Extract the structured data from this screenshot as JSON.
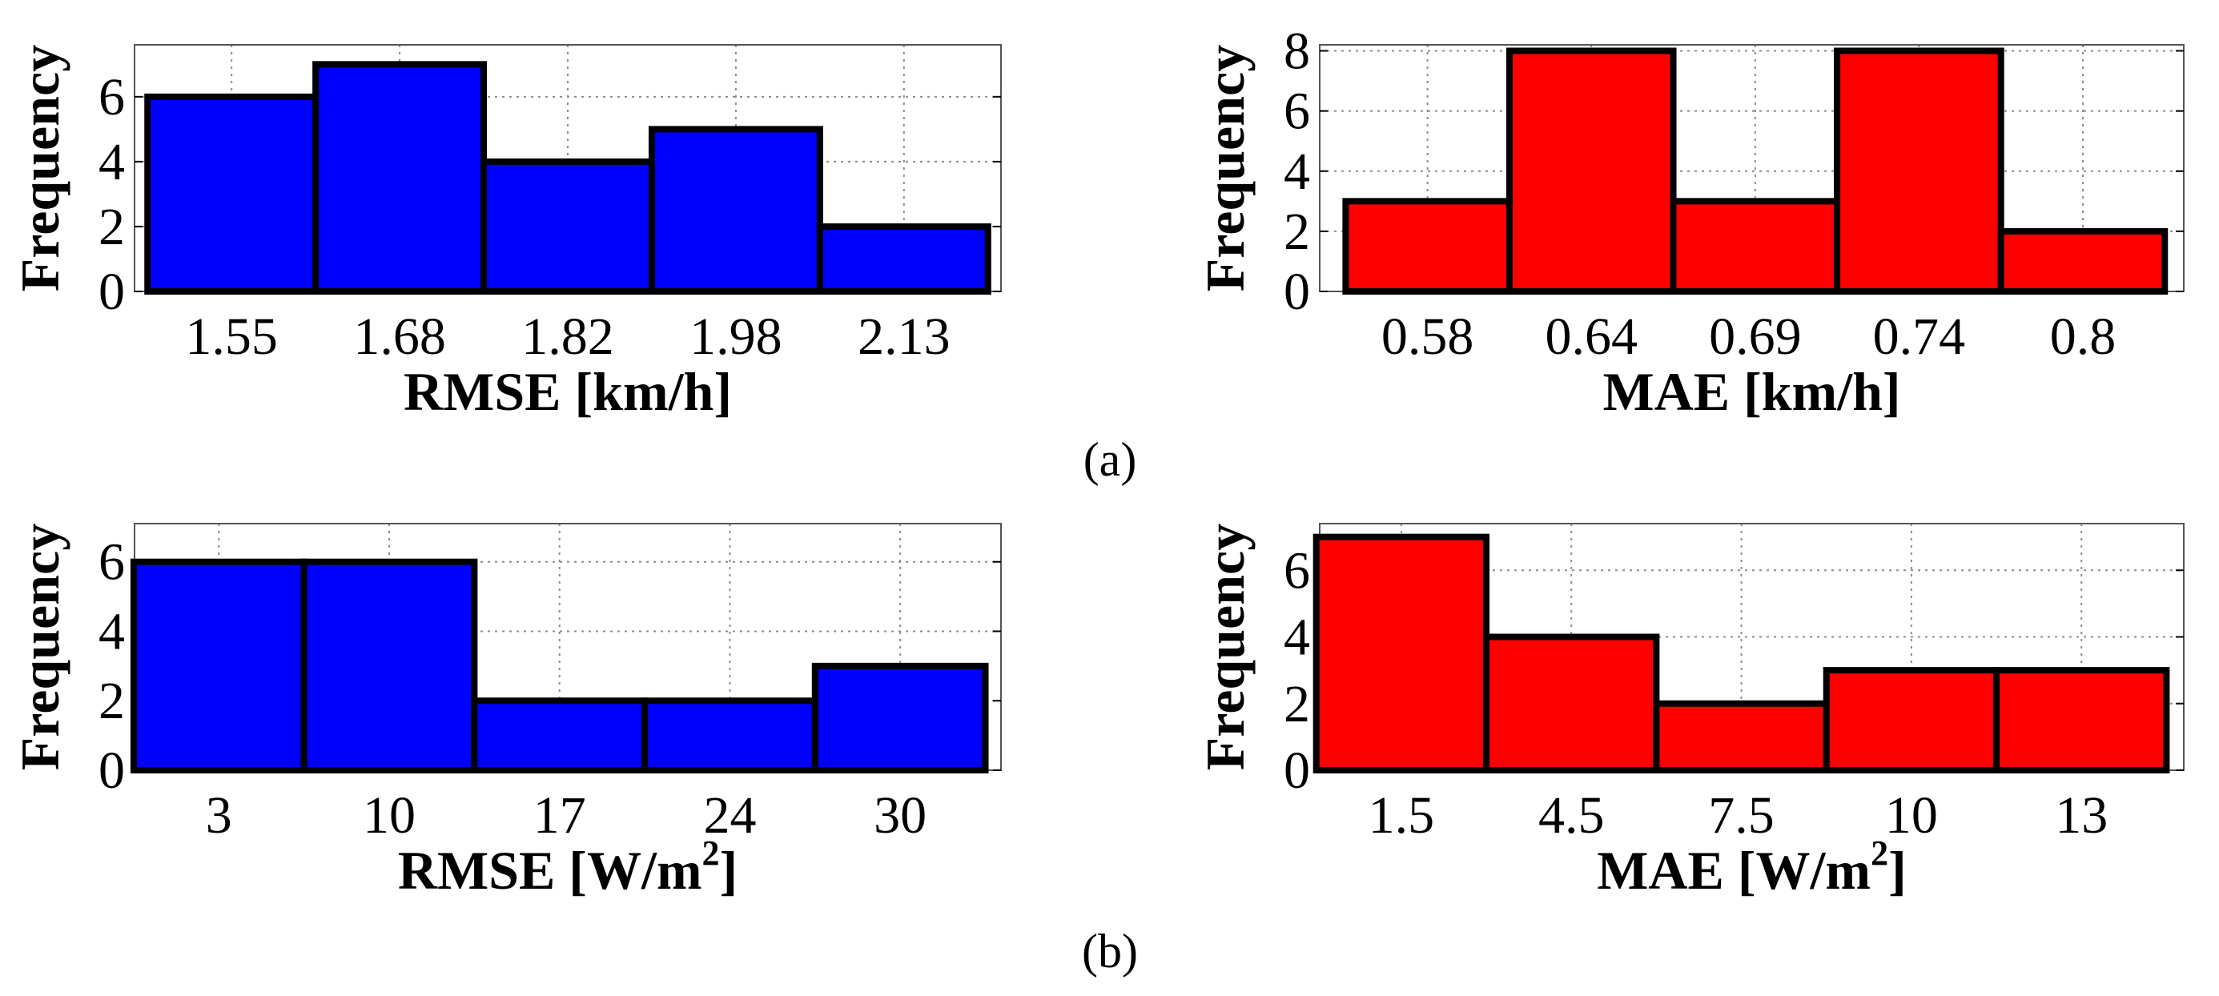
{
  "chart_data": [
    {
      "type": "bar",
      "panel": "a-left",
      "categories": [
        "1.55",
        "1.68",
        "1.82",
        "1.98",
        "2.13"
      ],
      "values": [
        6,
        7,
        4,
        5,
        2
      ],
      "xlabel": "RMSE [km/h]",
      "ylabel": "Frequency",
      "yticks": [
        "0",
        "2",
        "4",
        "6"
      ],
      "ylim": [
        0,
        7.6
      ],
      "color": "#0000ff",
      "grid": true
    },
    {
      "type": "bar",
      "panel": "a-right",
      "categories": [
        "0.58",
        "0.64",
        "0.69",
        "0.74",
        "0.8"
      ],
      "values": [
        3,
        8,
        3,
        8,
        2
      ],
      "xlabel": "MAE [km/h]",
      "ylabel": "Frequency",
      "yticks": [
        "0",
        "2",
        "4",
        "6",
        "8"
      ],
      "ylim": [
        0,
        8.2
      ],
      "color": "#ff0000",
      "grid": true
    },
    {
      "type": "bar",
      "panel": "b-left",
      "categories": [
        "3",
        "10",
        "17",
        "24",
        "30"
      ],
      "values": [
        6,
        6,
        2,
        2,
        3
      ],
      "xlabel": "RMSE [W/m",
      "xlabel_sup": "2",
      "xlabel_tail": "]",
      "ylabel": "Frequency",
      "yticks": [
        "0",
        "2",
        "4",
        "6"
      ],
      "ylim": [
        0,
        7.1
      ],
      "color": "#0000ff",
      "grid": true
    },
    {
      "type": "bar",
      "panel": "b-right",
      "categories": [
        "1.5",
        "4.5",
        "7.5",
        "10",
        "13"
      ],
      "values": [
        7,
        4,
        2,
        3,
        3
      ],
      "xlabel": "MAE [W/m",
      "xlabel_sup": "2",
      "xlabel_tail": "]",
      "ylabel": "Frequency",
      "yticks": [
        "0",
        "2",
        "4",
        "6"
      ],
      "ylim": [
        0,
        7.4
      ],
      "color": "#ff0000",
      "grid": true
    }
  ],
  "captions": {
    "a": "(a)",
    "b": "(b)"
  }
}
